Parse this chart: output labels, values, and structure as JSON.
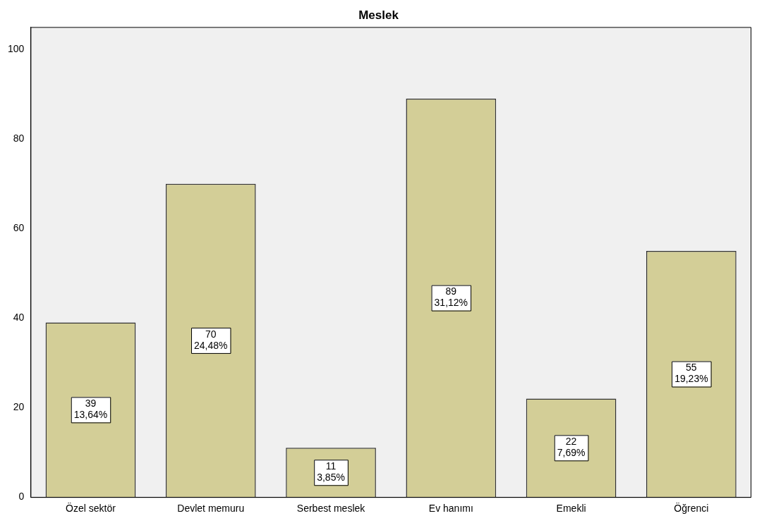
{
  "chart_data": {
    "type": "bar",
    "title": "Meslek",
    "categories": [
      "Özel sektör",
      "Devlet memuru",
      "Serbest meslek",
      "Ev hanımı",
      "Emekli",
      "Öğrenci"
    ],
    "values": [
      39,
      70,
      11,
      89,
      22,
      55
    ],
    "value_labels": [
      "39\n13,64%",
      "70\n24,48%",
      "11\n3,85%",
      "89\n31,12%",
      "22\n7,69%",
      "55\n19,23%"
    ],
    "color": "#d3ce97",
    "ylim": [
      0,
      105
    ],
    "yticks": [
      0,
      20,
      40,
      60,
      80,
      100
    ],
    "grid": false,
    "legend": false
  }
}
